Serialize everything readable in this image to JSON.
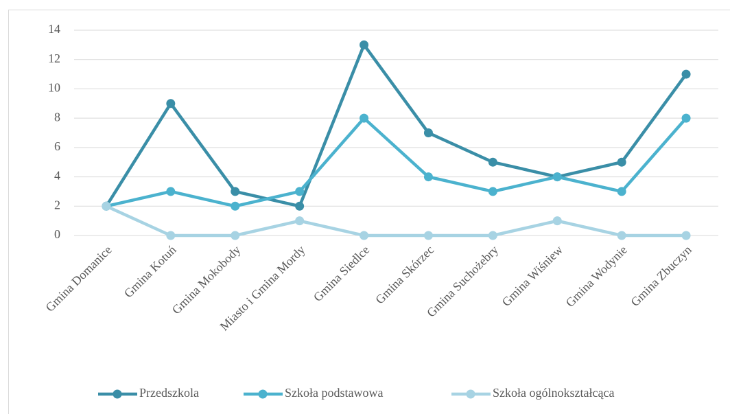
{
  "chart_data": {
    "type": "line",
    "categories": [
      "Gmina Domanice",
      "Gmina Kotuń",
      "Gmina Mokobody",
      "Miasto i Gmina Mordy",
      "Gmina Siedlce",
      "Gmina Skórzec",
      "Gmina Suchożebry",
      "Gmina Wiśniew",
      "Gmina Wodynie",
      "Gmina Zbuczyn"
    ],
    "series": [
      {
        "name": "Przedszkola",
        "color": "#3a8ea7",
        "values": [
          2,
          9,
          3,
          2,
          13,
          7,
          5,
          4,
          5,
          11
        ]
      },
      {
        "name": "Szkoła podstawowa",
        "color": "#4bb2ce",
        "values": [
          2,
          3,
          2,
          3,
          8,
          4,
          3,
          4,
          3,
          8
        ]
      },
      {
        "name": "Szkoła ogólnokształcąca",
        "color": "#a7d3e3",
        "values": [
          2,
          0,
          0,
          1,
          0,
          0,
          0,
          1,
          0,
          0
        ]
      }
    ],
    "ylim": [
      0,
      14
    ],
    "yticks": [
      0,
      2,
      4,
      6,
      8,
      10,
      12,
      14
    ],
    "grid": true,
    "legend": "bottom"
  }
}
